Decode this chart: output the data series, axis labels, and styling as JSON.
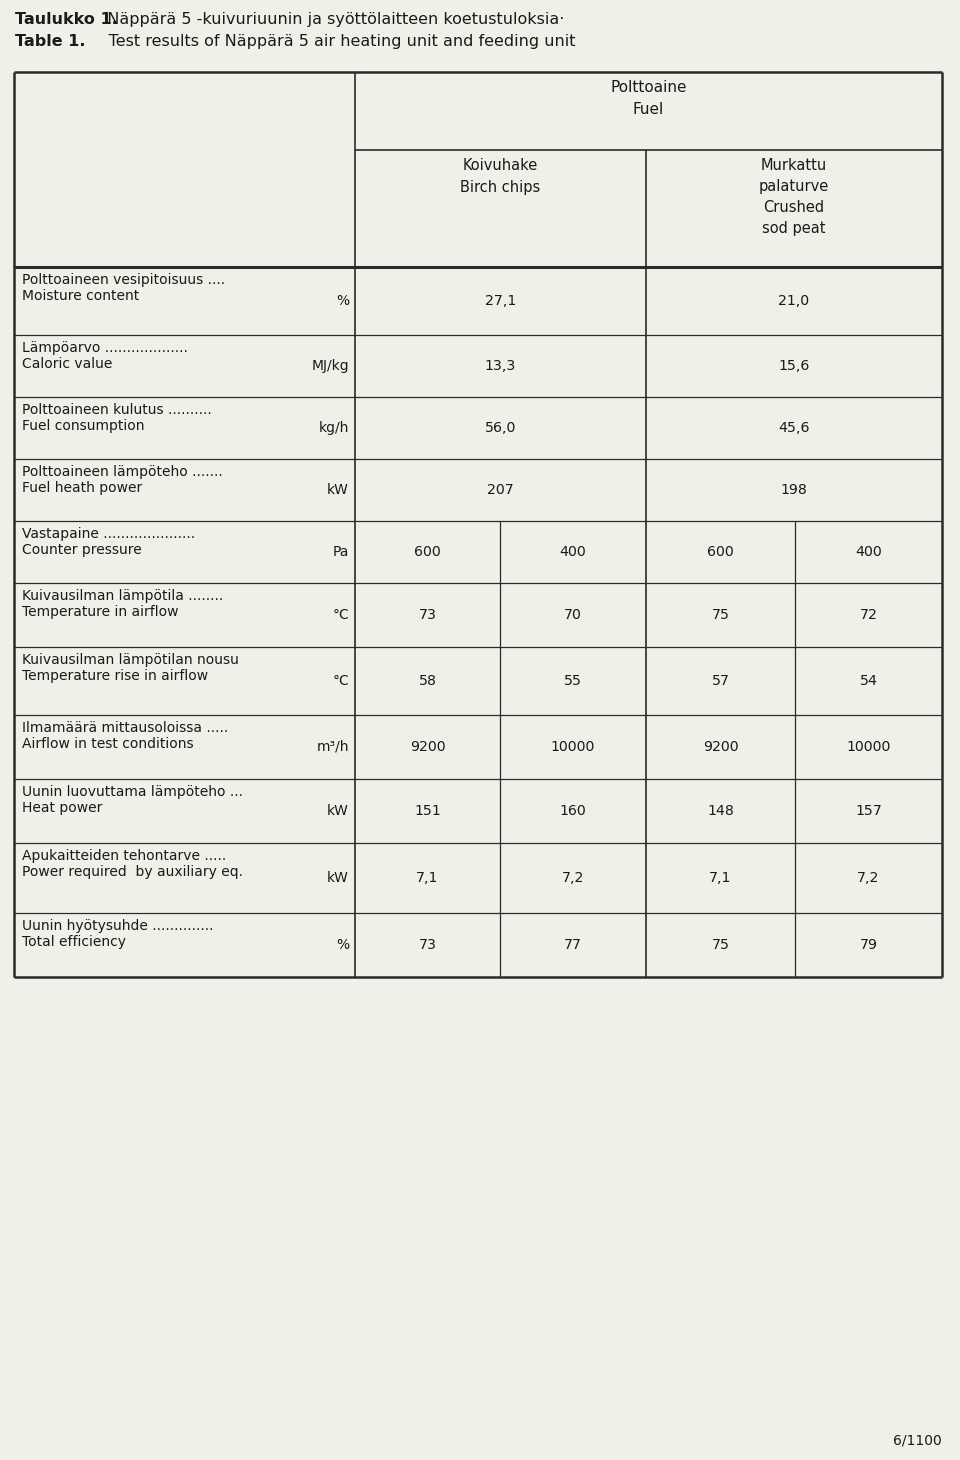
{
  "title_fi_bold": "Taulukko 1.",
  "title_fi_rest": "  Näppärä 5 -kuivuriuunin ja syöttölaitteen koetustuloksia·",
  "title_en_bold": "Table 1.",
  "title_en_rest": "     Test results of Näppärä 5 air heating unit and feeding unit",
  "rows": [
    {
      "label_fi": "Polttoaineen vesipitoisuus ....",
      "label_en": "Moisture content",
      "unit": "%",
      "birch": [
        "27,1",
        ""
      ],
      "peat": [
        "21,0",
        ""
      ]
    },
    {
      "label_fi": "Lämpöarvo ...................",
      "label_en": "Caloric value",
      "unit": "MJ/kg",
      "birch": [
        "13,3",
        ""
      ],
      "peat": [
        "15,6",
        ""
      ]
    },
    {
      "label_fi": "Polttoaineen kulutus ..........",
      "label_en": "Fuel consumption",
      "unit": "kg/h",
      "birch": [
        "56,0",
        ""
      ],
      "peat": [
        "45,6",
        ""
      ]
    },
    {
      "label_fi": "Polttoaineen lämpöteho .......",
      "label_en": "Fuel heath power",
      "unit": "kW",
      "birch": [
        "207",
        ""
      ],
      "peat": [
        "198",
        ""
      ]
    },
    {
      "label_fi": "Vastapaine .....................",
      "label_en": "Counter pressure",
      "unit": "Pa",
      "birch": [
        "600",
        "400"
      ],
      "peat": [
        "600",
        "400"
      ]
    },
    {
      "label_fi": "Kuivausilman lämpötila ........",
      "label_en": "Temperature in airflow",
      "unit": "°C",
      "birch": [
        "73",
        "70"
      ],
      "peat": [
        "75",
        "72"
      ]
    },
    {
      "label_fi": "Kuivausilman lämpötilan nousu",
      "label_en": "Temperature rise in airflow",
      "unit": "°C",
      "birch": [
        "58",
        "55"
      ],
      "peat": [
        "57",
        "54"
      ]
    },
    {
      "label_fi": "Ilmamäärä mittausoloissa .....",
      "label_en": "Airflow in test conditions",
      "unit": "m³/h",
      "birch": [
        "9200",
        "10000"
      ],
      "peat": [
        "9200",
        "10000"
      ]
    },
    {
      "label_fi": "Uunin luovuttama lämpöteho ...",
      "label_en": "Heat power",
      "unit": "kW",
      "birch": [
        "151",
        "160"
      ],
      "peat": [
        "148",
        "157"
      ]
    },
    {
      "label_fi": "Apukaitteiden tehontarve .....",
      "label_en": "Power required  by auxiliary eq.",
      "unit": "kW",
      "birch": [
        "7,1",
        "7,2"
      ],
      "peat": [
        "7,1",
        "7,2"
      ]
    },
    {
      "label_fi": "Uunin hyötysuhde ..............",
      "label_en": "Total efficiency",
      "unit": "%",
      "birch": [
        "73",
        "77"
      ],
      "peat": [
        "75",
        "79"
      ]
    }
  ],
  "footer": "6/1100",
  "bg_color": "#f0efe8",
  "text_color": "#1a1a1a",
  "line_color": "#2a2a2a"
}
